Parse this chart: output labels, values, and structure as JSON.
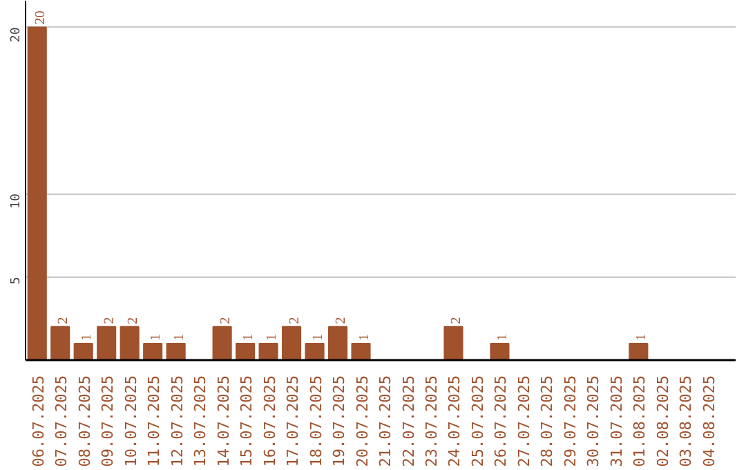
{
  "chart_data": {
    "type": "bar",
    "categories": [
      "06.07.2025",
      "07.07.2025",
      "08.07.2025",
      "09.07.2025",
      "10.07.2025",
      "11.07.2025",
      "12.07.2025",
      "13.07.2025",
      "14.07.2025",
      "15.07.2025",
      "16.07.2025",
      "17.07.2025",
      "18.07.2025",
      "19.07.2025",
      "20.07.2025",
      "21.07.2025",
      "22.07.2025",
      "23.07.2025",
      "24.07.2025",
      "25.07.2025",
      "26.07.2025",
      "27.07.2025",
      "28.07.2025",
      "29.07.2025",
      "30.07.2025",
      "31.07.2025",
      "01.08.2025",
      "02.08.2025",
      "03.08.2025",
      "04.08.2025"
    ],
    "values": [
      20,
      2,
      1,
      2,
      2,
      1,
      1,
      null,
      2,
      1,
      1,
      2,
      1,
      2,
      1,
      null,
      null,
      null,
      2,
      null,
      1,
      null,
      null,
      null,
      null,
      null,
      1,
      null,
      null,
      null
    ],
    "color": "#a0522d",
    "ylim": [
      0,
      21.6
    ],
    "yticks": [
      5,
      10,
      20
    ],
    "grid": "y",
    "data_labels": true
  }
}
